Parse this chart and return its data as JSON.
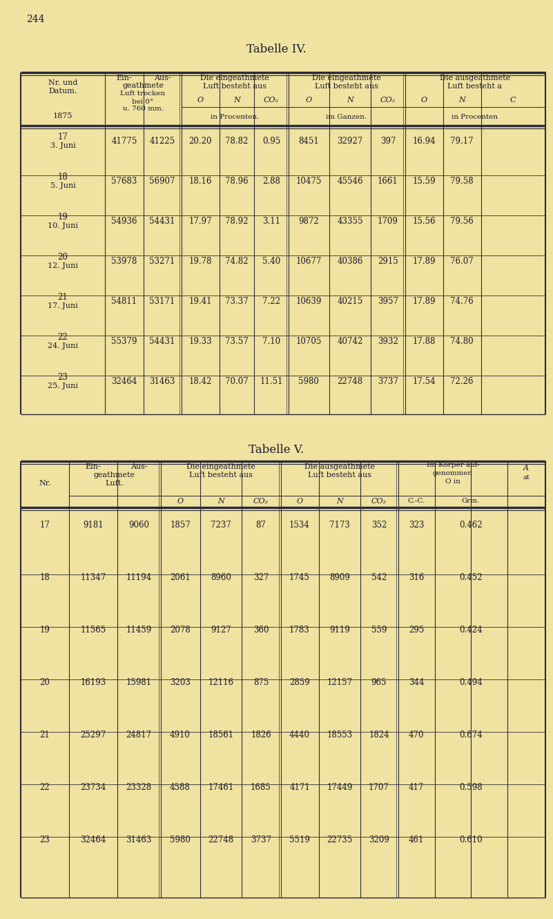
{
  "bg_color": "#f0e2a0",
  "text_color": "#1a1a2e",
  "page_number": "244",
  "table4_title": "Tabelle IV.",
  "table5_title": "Tabelle V.",
  "table4_rows": [
    {
      "nr": "17",
      "datum": "3. Juni",
      "ein": "41775",
      "aus": "41225",
      "p_o": "20.20",
      "p_n": "78.82",
      "p_co2": "0.95",
      "g_o": "8451",
      "g_n": "32927",
      "g_co2": "397",
      "a_o": "16.94",
      "a_n": "79.17"
    },
    {
      "nr": "18",
      "datum": "5. Juni",
      "ein": "57683",
      "aus": "56907",
      "p_o": "18.16",
      "p_n": "78.96",
      "p_co2": "2.88",
      "g_o": "10475",
      "g_n": "45546",
      "g_co2": "1661",
      "a_o": "15.59",
      "a_n": "79.58"
    },
    {
      "nr": "19",
      "datum": "10. Juni",
      "ein": "54936",
      "aus": "54431",
      "p_o": "17.97",
      "p_n": "78.92",
      "p_co2": "3.11",
      "g_o": "9872",
      "g_n": "43355",
      "g_co2": "1709",
      "a_o": "15.56",
      "a_n": "79.56"
    },
    {
      "nr": "20",
      "datum": "12. Juni",
      "ein": "53978",
      "aus": "53271",
      "p_o": "19.78",
      "p_n": "74.82",
      "p_co2": "5.40",
      "g_o": "10677",
      "g_n": "40386",
      "g_co2": "2915",
      "a_o": "17.89",
      "a_n": "76.07"
    },
    {
      "nr": "21",
      "datum": "17. Juni",
      "ein": "54811",
      "aus": "53171",
      "p_o": "19.41",
      "p_n": "73.37",
      "p_co2": "7.22",
      "g_o": "10639",
      "g_n": "40215",
      "g_co2": "3957",
      "a_o": "17.89",
      "a_n": "74.76"
    },
    {
      "nr": "22",
      "datum": "24. Juni",
      "ein": "55379",
      "aus": "54431",
      "p_o": "19.33",
      "p_n": "73.57",
      "p_co2": "7.10",
      "g_o": "10705",
      "g_n": "40742",
      "g_co2": "3932",
      "a_o": "17.88",
      "a_n": "74.80"
    },
    {
      "nr": "23",
      "datum": "25. Juni",
      "ein": "32464",
      "aus": "31463",
      "p_o": "18.42",
      "p_n": "70.07",
      "p_co2": "11.51",
      "g_o": "5980",
      "g_n": "22748",
      "g_co2": "3737",
      "a_o": "17.54",
      "a_n": "72.26"
    }
  ],
  "table5_rows": [
    {
      "nr": "17",
      "ein": "9181",
      "aus": "9060",
      "p_o": "1857",
      "p_n": "7237",
      "p_co2": "87",
      "a_o": "1534",
      "a_n": "7173",
      "a_co2": "352",
      "cc": "323",
      "grm": "0.462"
    },
    {
      "nr": "18",
      "ein": "11347",
      "aus": "11194",
      "p_o": "2061",
      "p_n": "8960",
      "p_co2": "327",
      "a_o": "1745",
      "a_n": "8909",
      "a_co2": "542",
      "cc": "316",
      "grm": "0.452"
    },
    {
      "nr": "19",
      "ein": "11565",
      "aus": "11459",
      "p_o": "2078",
      "p_n": "9127",
      "p_co2": "360",
      "a_o": "1783",
      "a_n": "9119",
      "a_co2": "559",
      "cc": "295",
      "grm": "0.424"
    },
    {
      "nr": "20",
      "ein": "16193",
      "aus": "15981",
      "p_o": "3203",
      "p_n": "12116",
      "p_co2": "875",
      "a_o": "2859",
      "a_n": "12157",
      "a_co2": "965",
      "cc": "344",
      "grm": "0.494"
    },
    {
      "nr": "21",
      "ein": "25297",
      "aus": "24817",
      "p_o": "4910",
      "p_n": "18561",
      "p_co2": "1826",
      "a_o": "4440",
      "a_n": "18553",
      "a_co2": "1824",
      "cc": "470",
      "grm": "0.674"
    },
    {
      "nr": "22",
      "ein": "23734",
      "aus": "23328",
      "p_o": "4588",
      "p_n": "17461",
      "p_co2": "1685",
      "a_o": "4171",
      "a_n": "17449",
      "a_co2": "1707",
      "cc": "417",
      "grm": "0.598"
    },
    {
      "nr": "23",
      "ein": "32464",
      "aus": "31463",
      "p_o": "5980",
      "p_n": "22748",
      "p_co2": "3737",
      "a_o": "5519",
      "a_n": "22735",
      "a_co2": "3209",
      "cc": "461",
      "grm": "0.610"
    }
  ]
}
